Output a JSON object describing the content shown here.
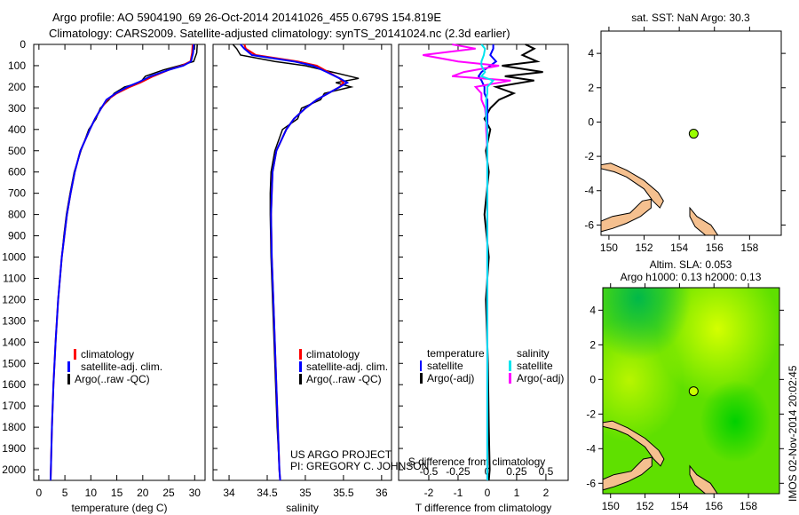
{
  "title_line1": "Argo profile: AO 5904190_69 26-Oct-2014 20141026_455 0.679S 154.819E",
  "title_line2": "Climatology: CARS2009. Satellite-adjusted climatology: synTS_20141024.nc (2.3d earlier)",
  "colors": {
    "climatology": "#ff0000",
    "satellite": "#0000ff",
    "argo": "#000000",
    "sal_satellite": "#00e5ee",
    "sal_argo": "#ff00ff",
    "land": "#f5c08f",
    "argo_dot": "#99ff00"
  },
  "chart_data": [
    {
      "type": "line",
      "name": "temperature",
      "xlabel": "temperature (deg C)",
      "xlim": [
        -1,
        32
      ],
      "ylim": [
        2050,
        0
      ],
      "xticks": [
        0,
        5,
        10,
        15,
        20,
        25,
        30
      ],
      "yticks": [
        0,
        100,
        200,
        300,
        400,
        500,
        600,
        700,
        800,
        900,
        1000,
        1100,
        1200,
        1300,
        1400,
        1500,
        1600,
        1700,
        1800,
        1900,
        2000
      ],
      "depth": [
        0,
        40,
        80,
        100,
        120,
        150,
        180,
        200,
        230,
        260,
        300,
        350,
        400,
        500,
        600,
        700,
        800,
        900,
        1000,
        1200,
        1400,
        1600,
        1800,
        2000,
        2050
      ],
      "series": [
        {
          "name": "climatology",
          "values": [
            29.6,
            29.5,
            29.2,
            27.5,
            25,
            22,
            19.5,
            17.5,
            15,
            13.2,
            12,
            10.8,
            9.8,
            8,
            6.9,
            6.1,
            5.4,
            4.9,
            4.4,
            3.7,
            3.2,
            2.8,
            2.5,
            2.3,
            2.25
          ]
        },
        {
          "name": "satellite-adj. clim.",
          "values": [
            29.8,
            29.7,
            29.3,
            27.8,
            25,
            21.5,
            19,
            17,
            14.8,
            13,
            12,
            10.8,
            9.8,
            8,
            6.9,
            6.1,
            5.4,
            4.9,
            4.4,
            3.7,
            3.2,
            2.8,
            2.5,
            2.3,
            2.25
          ]
        },
        {
          "name": "Argo(..raw -QC)",
          "values": [
            30.5,
            30.4,
            29.8,
            27,
            24,
            20.5,
            19.5,
            16.5,
            14.5,
            13.5,
            11.8,
            11,
            9.6,
            8.1,
            6.8,
            6,
            5.3,
            4.8,
            4.4,
            3.7,
            3.2,
            2.8,
            2.5,
            2.3,
            2.25
          ]
        }
      ]
    },
    {
      "type": "line",
      "name": "salinity",
      "xlabel": "salinity",
      "xlim": [
        33.79,
        36.13
      ],
      "ylim": [
        2050,
        0
      ],
      "xticks": [
        34,
        34.5,
        35,
        35.5,
        36
      ],
      "depth": [
        0,
        20,
        50,
        80,
        100,
        130,
        160,
        180,
        200,
        230,
        260,
        300,
        350,
        400,
        500,
        600,
        700,
        800,
        1000,
        1200,
        1500,
        1800,
        2000,
        2050
      ],
      "series": [
        {
          "name": "climatology",
          "values": [
            34.2,
            34.22,
            34.35,
            34.9,
            35.15,
            35.3,
            35.45,
            35.5,
            35.45,
            35.3,
            35.15,
            35.0,
            34.85,
            34.75,
            34.62,
            34.57,
            34.56,
            34.55,
            34.56,
            34.58,
            34.61,
            34.64,
            34.66,
            34.67
          ]
        },
        {
          "name": "satellite-adj. clim.",
          "values": [
            34.15,
            34.2,
            34.3,
            34.85,
            35.1,
            35.28,
            35.45,
            35.55,
            35.45,
            35.3,
            35.15,
            35.0,
            34.85,
            34.75,
            34.62,
            34.57,
            34.56,
            34.55,
            34.56,
            34.58,
            34.61,
            34.64,
            34.66,
            34.67
          ]
        },
        {
          "name": "Argo(..raw -QC)",
          "values": [
            34.05,
            34.1,
            34.15,
            34.6,
            35.0,
            35.35,
            35.7,
            35.4,
            35.6,
            35.25,
            35.2,
            34.95,
            34.9,
            34.7,
            34.6,
            34.55,
            34.54,
            34.54,
            34.55,
            34.57,
            34.6,
            34.63,
            34.66,
            34.67
          ]
        }
      ]
    },
    {
      "type": "line",
      "name": "difference",
      "xlabel": "T difference from climatology",
      "x2label": "S difference from climatology",
      "xlim": [
        -3.03,
        2.76
      ],
      "x2lim": [
        -0.757,
        0.69
      ],
      "ylim": [
        2050,
        0
      ],
      "xticks": [
        -2,
        -1,
        0,
        1,
        2
      ],
      "x2ticks": [
        "-0.5",
        "-0.25",
        "0",
        "0.25",
        "0.5"
      ],
      "x2tickvals": [
        -0.5,
        -0.25,
        0,
        0.25,
        0.5
      ],
      "depth": [
        0,
        20,
        50,
        80,
        100,
        130,
        150,
        170,
        200,
        230,
        260,
        300,
        350,
        400,
        500,
        600,
        800,
        1000,
        1200,
        1500,
        1800,
        2000,
        2050
      ],
      "series": [
        {
          "name": "temperature satellite",
          "axis": "T",
          "values": [
            0.2,
            0.2,
            0.1,
            0.3,
            0.1,
            -0.2,
            -0.3,
            -0.2,
            -0.1,
            -0.1,
            0,
            0,
            0,
            0,
            0,
            0,
            0,
            0,
            0,
            0,
            0,
            0,
            0
          ]
        },
        {
          "name": "temperature Argo(-adj)",
          "axis": "T",
          "values": [
            1.3,
            1.6,
            1.2,
            1.7,
            0.5,
            1.9,
            0.6,
            1.6,
            0.3,
            0.9,
            0.4,
            0.1,
            -0.1,
            0.1,
            -0.05,
            0.05,
            -0.1,
            0.05,
            -0.05,
            0.02,
            0.05,
            0.08,
            0.05
          ]
        },
        {
          "name": "salinity satellite",
          "axis": "S",
          "values": [
            -0.05,
            -0.02,
            -0.03,
            -0.05,
            -0.05,
            -0.02,
            -0.05,
            0.05,
            0,
            0,
            -0.01,
            -0.01,
            -0.01,
            0,
            0,
            0,
            0,
            0,
            0,
            0,
            0,
            0,
            0
          ]
        },
        {
          "name": "salinity Argo(-adj)",
          "axis": "S",
          "values": [
            -0.3,
            -0.1,
            -0.55,
            -0.25,
            0.1,
            -0.2,
            -0.3,
            0.2,
            -0.1,
            -0.05,
            -0.05,
            -0.02,
            -0.01,
            -0.01,
            0,
            0,
            0,
            0,
            0,
            0,
            0,
            0,
            0
          ]
        }
      ]
    }
  ],
  "legend1": [
    "climatology",
    "satellite-adj. clim.",
    "Argo(..raw -QC)"
  ],
  "legend3": {
    "temp_head": "temperature",
    "sal_head": "salinity",
    "sat": "satellite",
    "argo": "Argo(-adj)"
  },
  "credit1": "US ARGO PROJECT",
  "credit2": "PI: GREGORY C. JOHNSON",
  "map1": {
    "title": "sat. SST: NaN Argo: 30.3",
    "lonlim": [
      149.55,
      159.8
    ],
    "latlim": [
      -6.6,
      5.3
    ],
    "lonticks": [
      150,
      152,
      154,
      156,
      158
    ],
    "latticks": [
      4,
      2,
      0,
      -2,
      -4,
      -6
    ]
  },
  "map2": {
    "title1": "Altim. SLA: 0.053",
    "title2": "Argo h1000: 0.13 h2000: 0.13"
  },
  "argo_position": {
    "lon": 154.819,
    "lat": -0.679
  },
  "timestamp": "IMOS 02-Nov-2014 20:02:45"
}
